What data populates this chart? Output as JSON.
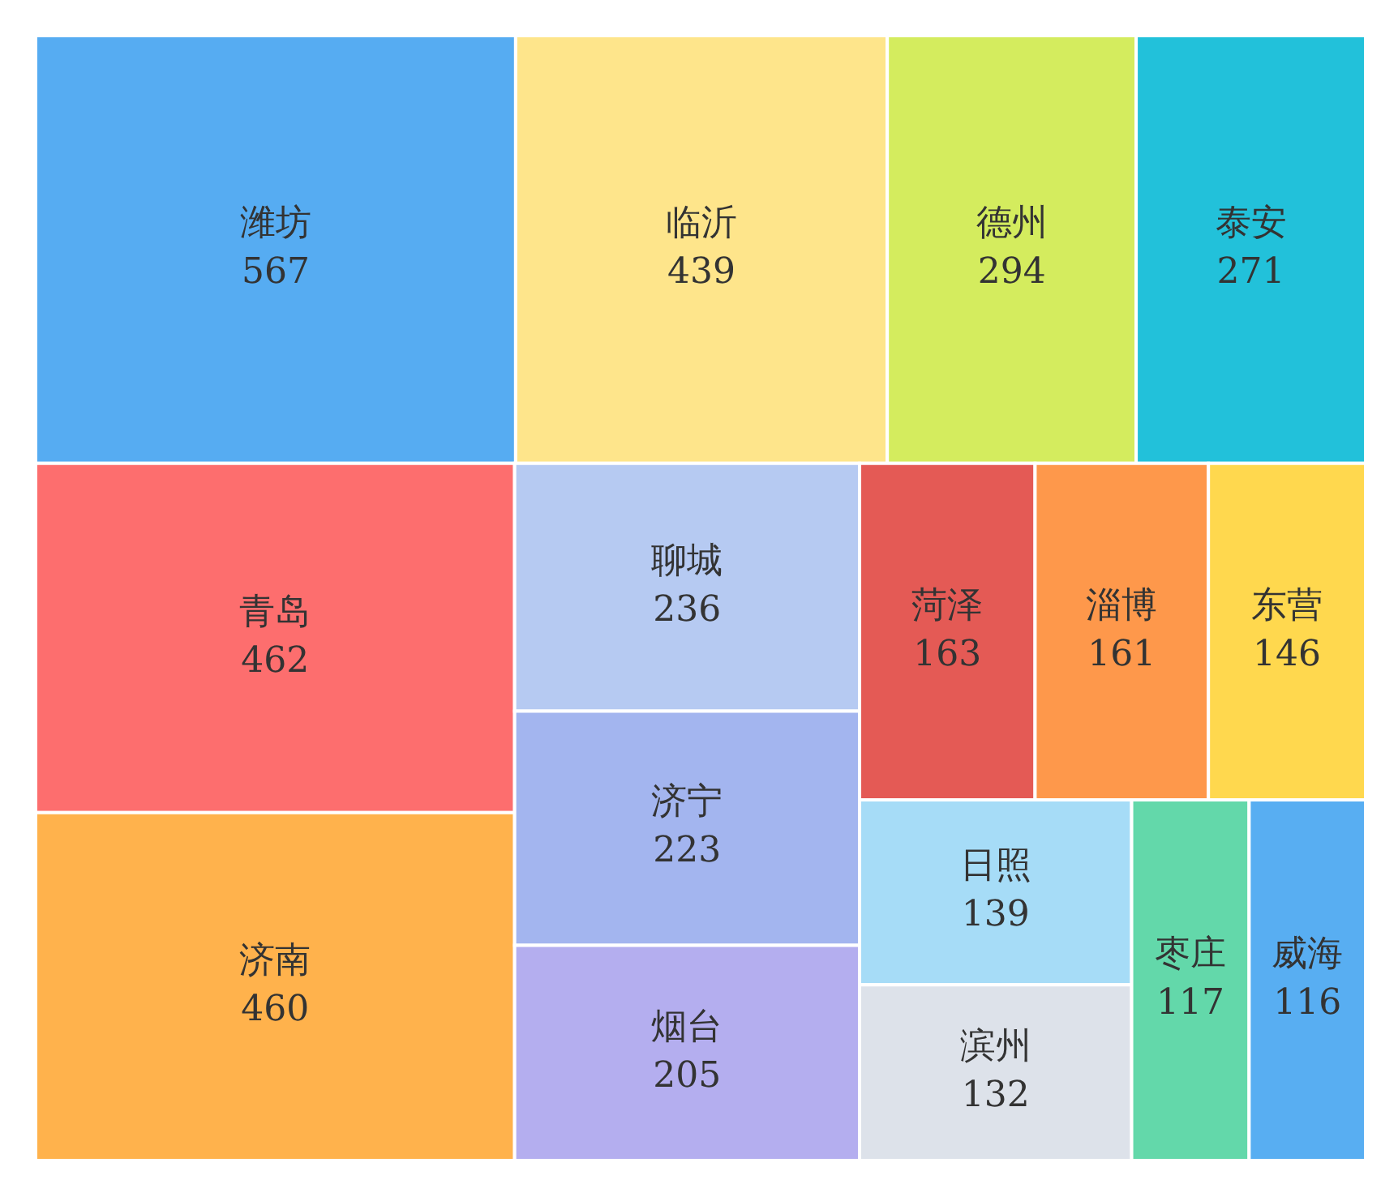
{
  "chart_data": {
    "type": "other",
    "categories": [
      "潍坊",
      "临沂",
      "德州",
      "泰安",
      "青岛",
      "济南",
      "聊城",
      "济宁",
      "烟台",
      "菏泽",
      "淄博",
      "东营",
      "日照",
      "滨州",
      "枣庄",
      "威海"
    ],
    "values": [
      567,
      439,
      294,
      271,
      462,
      460,
      236,
      223,
      205,
      163,
      161,
      146,
      139,
      132,
      117,
      116
    ],
    "colors": [
      "#56acf2",
      "#fee58b",
      "#d4ec5e",
      "#22c1da",
      "#fd6e6e",
      "#ffb24c",
      "#b6caf2",
      "#a3b5ef",
      "#b4aeef",
      "#e45a55",
      "#fe984b",
      "#ffd84e",
      "#a6dcf7",
      "#dde2ea",
      "#63d8aa",
      "#58aef2"
    ],
    "data_labels": true
  }
}
